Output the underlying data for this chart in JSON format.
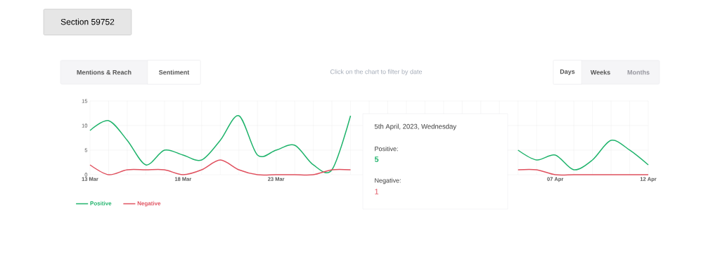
{
  "chart_data": {
    "type": "line",
    "title": "Section 59752",
    "categories": [
      "13 Mar",
      null,
      null,
      null,
      null,
      "18 Mar",
      null,
      null,
      null,
      null,
      "23 Mar",
      null,
      null,
      null,
      null,
      null,
      null,
      null,
      null,
      null,
      null,
      null,
      null,
      null,
      null,
      "07 Apr",
      null,
      null,
      null,
      null,
      "12 Apr"
    ],
    "series": [
      {
        "name": "Positive",
        "color": "#1fb36b",
        "values": [
          9,
          11,
          7,
          2,
          5,
          4,
          3,
          7,
          12,
          4,
          5,
          6,
          2,
          1,
          12,
          null,
          null,
          null,
          null,
          null,
          null,
          null,
          null,
          5,
          3,
          4,
          1,
          3,
          7,
          5,
          2
        ]
      },
      {
        "name": "Negative",
        "color": "#e0515f",
        "values": [
          2,
          0,
          1,
          1,
          1,
          0,
          1,
          3,
          1,
          0,
          0,
          0,
          0,
          1,
          1,
          null,
          null,
          null,
          null,
          null,
          null,
          null,
          null,
          1,
          1,
          0,
          0,
          0,
          0,
          0,
          0
        ]
      }
    ],
    "ylim": [
      0,
      15
    ],
    "yticks": [
      0,
      5,
      10,
      15
    ],
    "grid": true,
    "legend": "bottom left",
    "annotations": [
      "5th April, 2023, Wednesday",
      "Positive:",
      "5",
      "Negative:",
      "1",
      "Mentions & Reach",
      "Sentiment",
      "Click on the chart to filter by date",
      "Days",
      "Weeks",
      "Months"
    ]
  }
}
